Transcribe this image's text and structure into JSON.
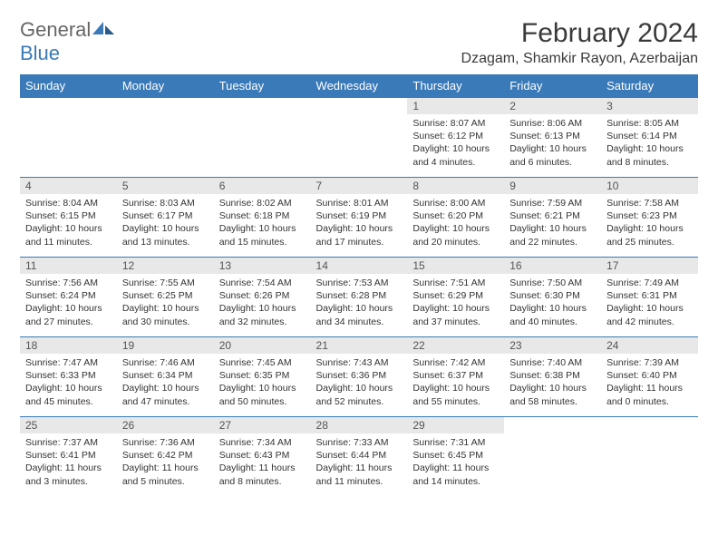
{
  "logo": {
    "part1": "General",
    "part2": "Blue"
  },
  "header": {
    "title": "February 2024",
    "location": "Dzagam, Shamkir Rayon, Azerbaijan"
  },
  "colors": {
    "accent": "#3a7ab8",
    "dayBar": "#e8e8e8",
    "text": "#333333",
    "headerText": "#3a3a3a"
  },
  "dayNames": [
    "Sunday",
    "Monday",
    "Tuesday",
    "Wednesday",
    "Thursday",
    "Friday",
    "Saturday"
  ],
  "weeks": [
    [
      null,
      null,
      null,
      null,
      {
        "n": "1",
        "sunrise": "8:07 AM",
        "sunset": "6:12 PM",
        "dayH": 10,
        "dayM": 4
      },
      {
        "n": "2",
        "sunrise": "8:06 AM",
        "sunset": "6:13 PM",
        "dayH": 10,
        "dayM": 6
      },
      {
        "n": "3",
        "sunrise": "8:05 AM",
        "sunset": "6:14 PM",
        "dayH": 10,
        "dayM": 8
      }
    ],
    [
      {
        "n": "4",
        "sunrise": "8:04 AM",
        "sunset": "6:15 PM",
        "dayH": 10,
        "dayM": 11
      },
      {
        "n": "5",
        "sunrise": "8:03 AM",
        "sunset": "6:17 PM",
        "dayH": 10,
        "dayM": 13
      },
      {
        "n": "6",
        "sunrise": "8:02 AM",
        "sunset": "6:18 PM",
        "dayH": 10,
        "dayM": 15
      },
      {
        "n": "7",
        "sunrise": "8:01 AM",
        "sunset": "6:19 PM",
        "dayH": 10,
        "dayM": 17
      },
      {
        "n": "8",
        "sunrise": "8:00 AM",
        "sunset": "6:20 PM",
        "dayH": 10,
        "dayM": 20
      },
      {
        "n": "9",
        "sunrise": "7:59 AM",
        "sunset": "6:21 PM",
        "dayH": 10,
        "dayM": 22
      },
      {
        "n": "10",
        "sunrise": "7:58 AM",
        "sunset": "6:23 PM",
        "dayH": 10,
        "dayM": 25
      }
    ],
    [
      {
        "n": "11",
        "sunrise": "7:56 AM",
        "sunset": "6:24 PM",
        "dayH": 10,
        "dayM": 27
      },
      {
        "n": "12",
        "sunrise": "7:55 AM",
        "sunset": "6:25 PM",
        "dayH": 10,
        "dayM": 30
      },
      {
        "n": "13",
        "sunrise": "7:54 AM",
        "sunset": "6:26 PM",
        "dayH": 10,
        "dayM": 32
      },
      {
        "n": "14",
        "sunrise": "7:53 AM",
        "sunset": "6:28 PM",
        "dayH": 10,
        "dayM": 34
      },
      {
        "n": "15",
        "sunrise": "7:51 AM",
        "sunset": "6:29 PM",
        "dayH": 10,
        "dayM": 37
      },
      {
        "n": "16",
        "sunrise": "7:50 AM",
        "sunset": "6:30 PM",
        "dayH": 10,
        "dayM": 40
      },
      {
        "n": "17",
        "sunrise": "7:49 AM",
        "sunset": "6:31 PM",
        "dayH": 10,
        "dayM": 42
      }
    ],
    [
      {
        "n": "18",
        "sunrise": "7:47 AM",
        "sunset": "6:33 PM",
        "dayH": 10,
        "dayM": 45
      },
      {
        "n": "19",
        "sunrise": "7:46 AM",
        "sunset": "6:34 PM",
        "dayH": 10,
        "dayM": 47
      },
      {
        "n": "20",
        "sunrise": "7:45 AM",
        "sunset": "6:35 PM",
        "dayH": 10,
        "dayM": 50
      },
      {
        "n": "21",
        "sunrise": "7:43 AM",
        "sunset": "6:36 PM",
        "dayH": 10,
        "dayM": 52
      },
      {
        "n": "22",
        "sunrise": "7:42 AM",
        "sunset": "6:37 PM",
        "dayH": 10,
        "dayM": 55
      },
      {
        "n": "23",
        "sunrise": "7:40 AM",
        "sunset": "6:38 PM",
        "dayH": 10,
        "dayM": 58
      },
      {
        "n": "24",
        "sunrise": "7:39 AM",
        "sunset": "6:40 PM",
        "dayH": 11,
        "dayM": 0
      }
    ],
    [
      {
        "n": "25",
        "sunrise": "7:37 AM",
        "sunset": "6:41 PM",
        "dayH": 11,
        "dayM": 3
      },
      {
        "n": "26",
        "sunrise": "7:36 AM",
        "sunset": "6:42 PM",
        "dayH": 11,
        "dayM": 5
      },
      {
        "n": "27",
        "sunrise": "7:34 AM",
        "sunset": "6:43 PM",
        "dayH": 11,
        "dayM": 8
      },
      {
        "n": "28",
        "sunrise": "7:33 AM",
        "sunset": "6:44 PM",
        "dayH": 11,
        "dayM": 11
      },
      {
        "n": "29",
        "sunrise": "7:31 AM",
        "sunset": "6:45 PM",
        "dayH": 11,
        "dayM": 14
      },
      null,
      null
    ]
  ],
  "labels": {
    "sunrise": "Sunrise:",
    "sunset": "Sunset:",
    "daylight": "Daylight:",
    "hours": "hours",
    "and": "and",
    "minutes": "minutes."
  }
}
